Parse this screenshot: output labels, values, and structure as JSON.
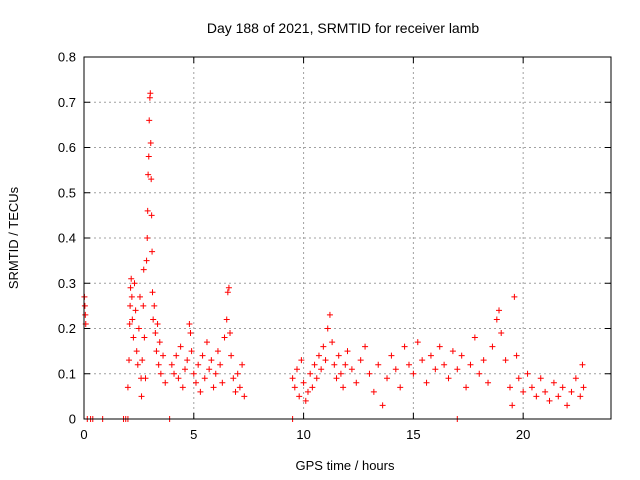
{
  "chart_data": {
    "type": "scatter",
    "title": "Day 188 of 2021, SRMTID for receiver lamb",
    "xlabel": "GPS time / hours",
    "ylabel": "SRMTID / TECUs",
    "xlim": [
      0,
      24
    ],
    "ylim": [
      0,
      0.8
    ],
    "xticks": [
      0,
      5,
      10,
      15,
      20
    ],
    "yticks": [
      0,
      0.1,
      0.2,
      0.3,
      0.4,
      0.5,
      0.6,
      0.7,
      0.8
    ],
    "xtick_labels": [
      "0",
      "5",
      "10",
      "15",
      "20"
    ],
    "ytick_labels": [
      "0",
      "0.1",
      "0.2",
      "0.3",
      "0.4",
      "0.5",
      "0.6",
      "0.7",
      "0.8"
    ],
    "grid": true,
    "marker": "+",
    "color": "#ff0000",
    "series": [
      {
        "name": "SRMTID",
        "points": [
          [
            0.02,
            0.27
          ],
          [
            0.04,
            0.25
          ],
          [
            0.06,
            0.23
          ],
          [
            0.08,
            0.21
          ],
          [
            0.15,
            0.0
          ],
          [
            0.3,
            0.0
          ],
          [
            0.4,
            0.0
          ],
          [
            0.85,
            0.0
          ],
          [
            1.8,
            0.0
          ],
          [
            1.9,
            0.0
          ],
          [
            2.0,
            0.0
          ],
          [
            3.9,
            0.0
          ],
          [
            9.5,
            0.0
          ],
          [
            17.0,
            0.0
          ],
          [
            2.0,
            0.07
          ],
          [
            2.05,
            0.13
          ],
          [
            2.08,
            0.21
          ],
          [
            2.1,
            0.25
          ],
          [
            2.12,
            0.29
          ],
          [
            2.15,
            0.31
          ],
          [
            2.18,
            0.27
          ],
          [
            2.2,
            0.22
          ],
          [
            2.25,
            0.18
          ],
          [
            2.3,
            0.3
          ],
          [
            2.35,
            0.24
          ],
          [
            2.4,
            0.15
          ],
          [
            2.45,
            0.12
          ],
          [
            2.5,
            0.2
          ],
          [
            2.55,
            0.27
          ],
          [
            2.6,
            0.09
          ],
          [
            2.62,
            0.05
          ],
          [
            2.65,
            0.13
          ],
          [
            2.7,
            0.25
          ],
          [
            2.72,
            0.33
          ],
          [
            2.75,
            0.18
          ],
          [
            2.8,
            0.09
          ],
          [
            2.85,
            0.35
          ],
          [
            2.88,
            0.4
          ],
          [
            2.9,
            0.46
          ],
          [
            2.92,
            0.54
          ],
          [
            2.95,
            0.58
          ],
          [
            2.97,
            0.66
          ],
          [
            3.0,
            0.71
          ],
          [
            3.02,
            0.72
          ],
          [
            3.04,
            0.61
          ],
          [
            3.06,
            0.53
          ],
          [
            3.08,
            0.45
          ],
          [
            3.1,
            0.37
          ],
          [
            3.12,
            0.28
          ],
          [
            3.15,
            0.22
          ],
          [
            3.2,
            0.25
          ],
          [
            3.25,
            0.19
          ],
          [
            3.3,
            0.15
          ],
          [
            3.35,
            0.21
          ],
          [
            3.4,
            0.12
          ],
          [
            3.45,
            0.17
          ],
          [
            3.5,
            0.1
          ],
          [
            3.6,
            0.14
          ],
          [
            3.7,
            0.08
          ],
          [
            4.0,
            0.12
          ],
          [
            4.1,
            0.1
          ],
          [
            4.2,
            0.14
          ],
          [
            4.3,
            0.09
          ],
          [
            4.4,
            0.16
          ],
          [
            4.5,
            0.07
          ],
          [
            4.6,
            0.11
          ],
          [
            4.7,
            0.13
          ],
          [
            4.8,
            0.21
          ],
          [
            4.85,
            0.19
          ],
          [
            4.9,
            0.15
          ],
          [
            5.0,
            0.1
          ],
          [
            5.1,
            0.08
          ],
          [
            5.2,
            0.12
          ],
          [
            5.3,
            0.06
          ],
          [
            5.4,
            0.14
          ],
          [
            5.5,
            0.09
          ],
          [
            5.6,
            0.17
          ],
          [
            5.7,
            0.11
          ],
          [
            5.8,
            0.13
          ],
          [
            5.9,
            0.07
          ],
          [
            6.0,
            0.1
          ],
          [
            6.1,
            0.15
          ],
          [
            6.2,
            0.12
          ],
          [
            6.3,
            0.08
          ],
          [
            6.4,
            0.18
          ],
          [
            6.5,
            0.22
          ],
          [
            6.55,
            0.28
          ],
          [
            6.6,
            0.29
          ],
          [
            6.65,
            0.19
          ],
          [
            6.7,
            0.14
          ],
          [
            6.8,
            0.09
          ],
          [
            6.9,
            0.06
          ],
          [
            7.0,
            0.1
          ],
          [
            7.1,
            0.07
          ],
          [
            7.2,
            0.12
          ],
          [
            7.3,
            0.05
          ],
          [
            9.5,
            0.09
          ],
          [
            9.6,
            0.07
          ],
          [
            9.7,
            0.11
          ],
          [
            9.8,
            0.05
          ],
          [
            9.9,
            0.13
          ],
          [
            10.0,
            0.08
          ],
          [
            10.1,
            0.04
          ],
          [
            10.2,
            0.06
          ],
          [
            10.3,
            0.1
          ],
          [
            10.4,
            0.07
          ],
          [
            10.5,
            0.12
          ],
          [
            10.6,
            0.09
          ],
          [
            10.7,
            0.14
          ],
          [
            10.8,
            0.11
          ],
          [
            10.9,
            0.16
          ],
          [
            11.0,
            0.13
          ],
          [
            11.1,
            0.2
          ],
          [
            11.2,
            0.23
          ],
          [
            11.3,
            0.17
          ],
          [
            11.4,
            0.12
          ],
          [
            11.5,
            0.09
          ],
          [
            11.6,
            0.14
          ],
          [
            11.7,
            0.1
          ],
          [
            11.8,
            0.07
          ],
          [
            11.9,
            0.12
          ],
          [
            12.0,
            0.15
          ],
          [
            12.2,
            0.11
          ],
          [
            12.4,
            0.08
          ],
          [
            12.6,
            0.13
          ],
          [
            12.8,
            0.16
          ],
          [
            13.0,
            0.1
          ],
          [
            13.2,
            0.06
          ],
          [
            13.4,
            0.12
          ],
          [
            13.6,
            0.03
          ],
          [
            13.8,
            0.09
          ],
          [
            14.0,
            0.14
          ],
          [
            14.2,
            0.11
          ],
          [
            14.4,
            0.07
          ],
          [
            14.6,
            0.16
          ],
          [
            14.8,
            0.12
          ],
          [
            15.0,
            0.1
          ],
          [
            15.2,
            0.17
          ],
          [
            15.4,
            0.13
          ],
          [
            15.6,
            0.08
          ],
          [
            15.8,
            0.14
          ],
          [
            16.0,
            0.11
          ],
          [
            16.2,
            0.16
          ],
          [
            16.4,
            0.12
          ],
          [
            16.6,
            0.09
          ],
          [
            16.8,
            0.15
          ],
          [
            17.0,
            0.11
          ],
          [
            17.2,
            0.14
          ],
          [
            17.4,
            0.07
          ],
          [
            17.6,
            0.12
          ],
          [
            17.8,
            0.18
          ],
          [
            18.0,
            0.1
          ],
          [
            18.2,
            0.13
          ],
          [
            18.4,
            0.08
          ],
          [
            18.6,
            0.16
          ],
          [
            18.8,
            0.22
          ],
          [
            18.9,
            0.24
          ],
          [
            19.0,
            0.19
          ],
          [
            19.2,
            0.13
          ],
          [
            19.4,
            0.07
          ],
          [
            19.5,
            0.03
          ],
          [
            19.6,
            0.27
          ],
          [
            19.7,
            0.14
          ],
          [
            19.8,
            0.09
          ],
          [
            20.0,
            0.06
          ],
          [
            20.2,
            0.1
          ],
          [
            20.4,
            0.07
          ],
          [
            20.6,
            0.05
          ],
          [
            20.8,
            0.09
          ],
          [
            21.0,
            0.06
          ],
          [
            21.2,
            0.04
          ],
          [
            21.4,
            0.08
          ],
          [
            21.6,
            0.05
          ],
          [
            21.8,
            0.07
          ],
          [
            22.0,
            0.03
          ],
          [
            22.2,
            0.06
          ],
          [
            22.4,
            0.09
          ],
          [
            22.6,
            0.05
          ],
          [
            22.7,
            0.12
          ],
          [
            22.75,
            0.07
          ]
        ]
      }
    ]
  }
}
